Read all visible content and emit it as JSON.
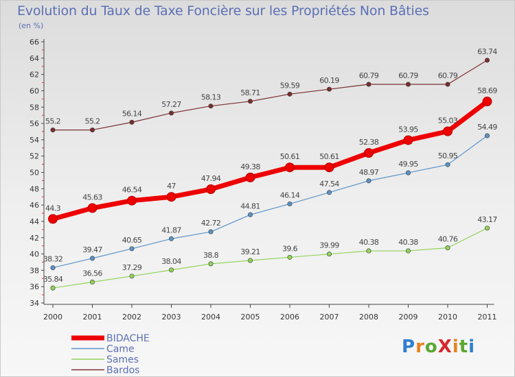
{
  "title": "Evolution du Taux de Taxe Foncière sur les Propriétés Non Bâties",
  "subtitle": "(en %)",
  "logo": {
    "text": "ProXiti",
    "letters": [
      "P",
      "r",
      "o",
      "X",
      "i",
      "t",
      "i"
    ],
    "colors": [
      "#2f7fd0",
      "#e8821e",
      "#5aa732",
      "#d8262c",
      "#e8821e",
      "#5aa732",
      "#2f7fd0"
    ]
  },
  "chart_data": {
    "type": "line",
    "title": "Evolution du Taux de Taxe Foncière sur les Propriétés Non Bâties",
    "ylabel": "(en %)",
    "xlabel": "",
    "categories": [
      "2000",
      "2001",
      "2002",
      "2003",
      "2004",
      "2005",
      "2006",
      "2007",
      "2008",
      "2009",
      "2010",
      "2011"
    ],
    "ylim": [
      34,
      66
    ],
    "yticks": [
      34,
      36,
      38,
      40,
      42,
      44,
      46,
      48,
      50,
      52,
      54,
      56,
      58,
      60,
      62,
      64,
      66
    ],
    "grid": false,
    "legend_position": "bottom-left",
    "series": [
      {
        "name": "BIDACHE",
        "color": "#ee0000",
        "width": "thick",
        "values": [
          44.3,
          45.63,
          46.54,
          47,
          47.94,
          49.38,
          50.61,
          50.61,
          52.38,
          53.95,
          55.03,
          58.69
        ],
        "labels": [
          "44.3",
          "45.63",
          "46.54",
          "47",
          "47.94",
          "49.38",
          "50.61",
          "50.61",
          "52.38",
          "53.95",
          "55.03",
          "58.69"
        ]
      },
      {
        "name": "Came",
        "color": "#5b93c8",
        "width": "thin",
        "values": [
          38.32,
          39.47,
          40.65,
          41.87,
          42.72,
          44.81,
          46.14,
          47.54,
          48.97,
          49.95,
          50.95,
          54.49
        ],
        "labels": [
          "38.32",
          "39.47",
          "40.65",
          "41.87",
          "42.72",
          "44.81",
          "46.14",
          "47.54",
          "48.97",
          "49.95",
          "50.95",
          "54.49"
        ]
      },
      {
        "name": "Sames",
        "color": "#92d35a",
        "width": "thin",
        "values": [
          35.84,
          36.56,
          37.29,
          38.04,
          38.8,
          39.21,
          39.6,
          39.99,
          40.38,
          40.38,
          40.76,
          43.17
        ],
        "labels": [
          "35.84",
          "36.56",
          "37.29",
          "38.04",
          "38.8",
          "39.21",
          "39.6",
          "39.99",
          "40.38",
          "40.38",
          "40.76",
          "43.17"
        ]
      },
      {
        "name": "Bardos",
        "color": "#7a2e2e",
        "width": "thin",
        "values": [
          55.2,
          55.2,
          56.14,
          57.27,
          58.13,
          58.71,
          59.59,
          60.19,
          60.79,
          60.79,
          60.79,
          63.74
        ],
        "labels": [
          "55.2",
          "55.2",
          "56.14",
          "57.27",
          "58.13",
          "58.71",
          "59.59",
          "60.19",
          "60.79",
          "60.79",
          "60.79",
          "63.74"
        ]
      }
    ]
  }
}
